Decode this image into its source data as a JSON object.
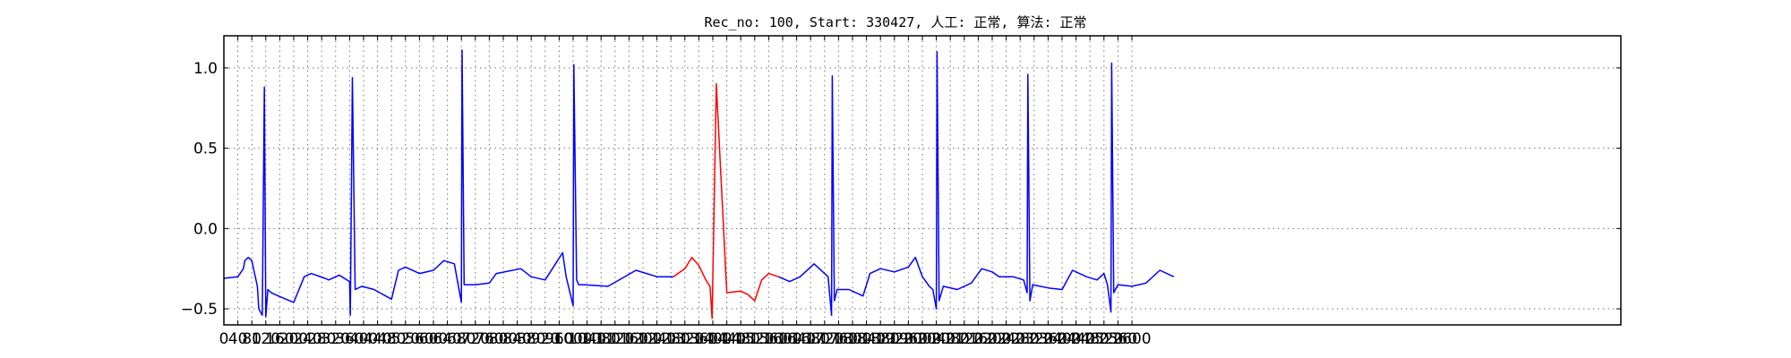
{
  "chart_data": {
    "type": "line",
    "title": "Rec_no: 100, Start: 330427, 人工: 正常, 算法: 正常",
    "xlabel": "",
    "ylabel": "",
    "xlim": [
      0,
      4000
    ],
    "ylim": [
      -0.6,
      1.2
    ],
    "grid": true,
    "x_ticks": [
      0,
      40,
      80,
      120,
      160,
      200,
      240,
      280,
      320,
      360,
      400,
      440,
      480,
      520,
      560,
      600,
      640,
      680,
      720,
      760,
      800,
      840,
      880,
      920,
      960,
      1000,
      1040,
      1080,
      1120,
      1160,
      1200,
      1240,
      1280,
      1320,
      1360,
      1400,
      1440,
      1480,
      1520,
      1560,
      1600,
      1640,
      1680,
      1720,
      1760,
      1800,
      1840,
      1880,
      1920,
      1960,
      2000,
      2040,
      2080,
      2120,
      2160,
      2200,
      2240,
      2280,
      2320,
      2360,
      2400,
      2440,
      2480,
      2520,
      2560,
      2600
    ],
    "x_tick_labels": [
      "0",
      "40",
      "80",
      "120",
      "160",
      "200",
      "240",
      "280",
      "320",
      "360",
      "400",
      "440",
      "480",
      "520",
      "560",
      "600",
      "640",
      "680",
      "720",
      "760",
      "800",
      "840",
      "880",
      "920",
      "960",
      "1000",
      "1040",
      "1080",
      "1120",
      "1160",
      "1200",
      "1240",
      "1280",
      "1320",
      "1360",
      "1400",
      "1440",
      "1480",
      "1520",
      "1560",
      "1600",
      "1640",
      "1680",
      "1720",
      "1760",
      "1800",
      "1840",
      "1880",
      "1920",
      "1960",
      "2000",
      "2040",
      "2080",
      "2120",
      "2160",
      "2200",
      "2240",
      "2280",
      "2320",
      "2360",
      "2400",
      "2440",
      "2480",
      "2520",
      "2560",
      "2600"
    ],
    "y_ticks": [
      -0.5,
      0.0,
      0.5,
      1.0
    ],
    "y_tick_labels": [
      "−0.5",
      "0.0",
      "0.5",
      "1.0"
    ],
    "series": [
      {
        "color": "#0000ff",
        "segment": "blue-before",
        "x": [
          0,
          40,
          56,
          60,
          70,
          80,
          88,
          96,
          100,
          110,
          116,
          120,
          126,
          136,
          156,
          200,
          230,
          250,
          290,
          300,
          330,
          360,
          362,
          368,
          376,
          395,
          430,
          480,
          500,
          520,
          560,
          600,
          630,
          660,
          680,
          682,
          688,
          696,
          720,
          760,
          780,
          850,
          880,
          920,
          970,
          980,
          1000,
          1002,
          1010,
          1016,
          1030,
          1100,
          1180,
          1240,
          1280,
          1287
        ],
        "y": [
          -0.31,
          -0.3,
          -0.25,
          -0.2,
          -0.18,
          -0.2,
          -0.28,
          -0.36,
          -0.5,
          -0.54,
          0.88,
          -0.55,
          -0.38,
          -0.4,
          -0.42,
          -0.46,
          -0.3,
          -0.28,
          -0.31,
          -0.32,
          -0.29,
          -0.33,
          -0.54,
          0.94,
          -0.38,
          -0.36,
          -0.38,
          -0.44,
          -0.26,
          -0.24,
          -0.28,
          -0.26,
          -0.2,
          -0.22,
          -0.46,
          1.11,
          -0.35,
          -0.35,
          -0.35,
          -0.34,
          -0.28,
          -0.25,
          -0.3,
          -0.32,
          -0.15,
          -0.3,
          -0.48,
          1.02,
          -0.32,
          -0.35,
          -0.35,
          -0.36,
          -0.26,
          -0.3,
          -0.3,
          -0.3
        ]
      },
      {
        "color": "#ff0000",
        "segment": "red-beat",
        "x": [
          1287,
          1320,
          1340,
          1360,
          1380,
          1392,
          1398,
          1410,
          1440,
          1480,
          1500,
          1520,
          1540,
          1560,
          1588
        ],
        "y": [
          -0.3,
          -0.25,
          -0.18,
          -0.23,
          -0.32,
          -0.36,
          -0.56,
          0.9,
          -0.4,
          -0.39,
          -0.41,
          -0.45,
          -0.32,
          -0.28,
          -0.3
        ]
      },
      {
        "color": "#0000ff",
        "segment": "blue-after",
        "x": [
          1588,
          1620,
          1650,
          1690,
          1730,
          1740,
          1742,
          1748,
          1756,
          1790,
          1830,
          1850,
          1880,
          1920,
          1960,
          1980,
          2000,
          2020,
          2030,
          2040,
          2042,
          2048,
          2060,
          2100,
          2140,
          2170,
          2200,
          2220,
          2260,
          2290,
          2300,
          2302,
          2308,
          2316,
          2360,
          2400,
          2430,
          2470,
          2500,
          2520,
          2530,
          2540,
          2542,
          2548,
          2560,
          2600,
          2640,
          2680,
          2720
        ],
        "y": [
          -0.3,
          -0.33,
          -0.3,
          -0.22,
          -0.3,
          -0.54,
          0.95,
          -0.45,
          -0.38,
          -0.38,
          -0.42,
          -0.28,
          -0.25,
          -0.27,
          -0.24,
          -0.18,
          -0.3,
          -0.36,
          -0.38,
          -0.5,
          1.1,
          -0.45,
          -0.36,
          -0.38,
          -0.34,
          -0.25,
          -0.27,
          -0.3,
          -0.3,
          -0.32,
          -0.4,
          0.96,
          -0.45,
          -0.35,
          -0.37,
          -0.38,
          -0.26,
          -0.3,
          -0.32,
          -0.28,
          -0.35,
          -0.52,
          1.03,
          -0.4,
          -0.35,
          -0.36,
          -0.34,
          -0.26,
          -0.3
        ]
      }
    ]
  }
}
